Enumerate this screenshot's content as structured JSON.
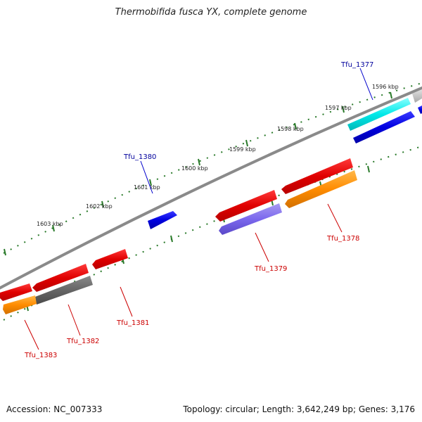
{
  "title": "Thermobifida fusca YX, complete genome",
  "footer": {
    "accession": "Accession: NC_007333",
    "summary": "Topology: circular; Length: 3,642,249 bp; Genes: 3,176"
  },
  "colors": {
    "backbone": "#8a8a8a",
    "ticks": "#2a7a2a",
    "label_red": "#cc0000",
    "label_blue": "#00009c"
  },
  "scale": {
    "ticks": [
      "1596 kbp",
      "1597 kbp",
      "1598 kbp",
      "1599 kbp",
      "1600 kbp",
      "1601 kbp",
      "1602 kbp",
      "1603 kbp"
    ]
  },
  "genes": [
    {
      "label": "Tfu_1377",
      "strand": "forward"
    },
    {
      "label": "Tfu_1378",
      "strand": "reverse"
    },
    {
      "label": "Tfu_1379",
      "strand": "reverse"
    },
    {
      "label": "Tfu_1380",
      "strand": "forward"
    },
    {
      "label": "Tfu_1381",
      "strand": "reverse"
    },
    {
      "label": "Tfu_1382",
      "strand": "reverse"
    },
    {
      "label": "Tfu_1383",
      "strand": "reverse"
    }
  ]
}
